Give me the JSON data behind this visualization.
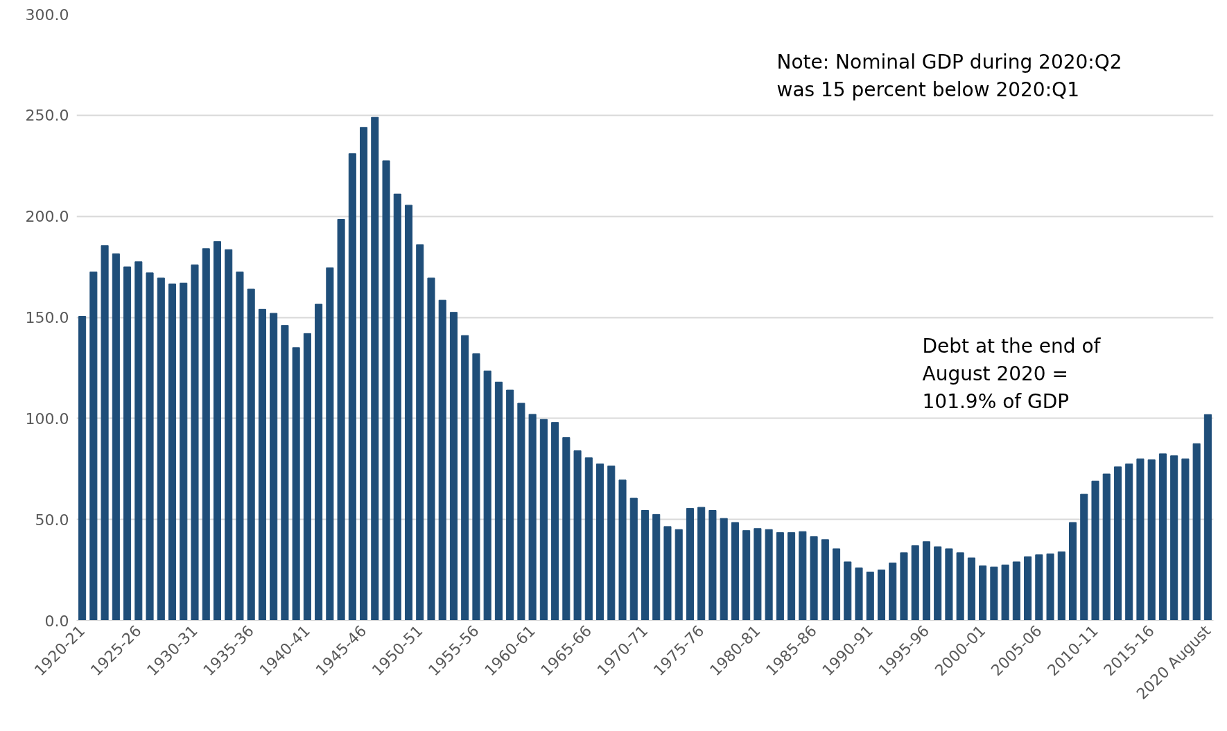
{
  "chart_data": {
    "type": "bar",
    "color": "#1f4e79",
    "categories": [
      "1920-21",
      null,
      null,
      null,
      null,
      "1925-26",
      null,
      null,
      null,
      null,
      "1930-31",
      null,
      null,
      null,
      null,
      "1935-36",
      null,
      null,
      null,
      null,
      "1940-41",
      null,
      null,
      null,
      null,
      "1945-46",
      null,
      null,
      null,
      null,
      "1950-51",
      null,
      null,
      null,
      null,
      "1955-56",
      null,
      null,
      null,
      null,
      "1960-61",
      null,
      null,
      null,
      null,
      "1965-66",
      null,
      null,
      null,
      null,
      "1970-71",
      null,
      null,
      null,
      null,
      "1975-76",
      null,
      null,
      null,
      null,
      "1980-81",
      null,
      null,
      null,
      null,
      "1985-86",
      null,
      null,
      null,
      null,
      "1990-91",
      null,
      null,
      null,
      null,
      "1995-96",
      null,
      null,
      null,
      null,
      "2000-01",
      null,
      null,
      null,
      null,
      "2005-06",
      null,
      null,
      null,
      null,
      "2010-11",
      null,
      null,
      null,
      null,
      "2015-16",
      null,
      null,
      null,
      null,
      "2020 August"
    ],
    "values": [
      150.5,
      172.5,
      185.5,
      181.5,
      175,
      177.5,
      172,
      169.5,
      166.5,
      167,
      176,
      184,
      187.5,
      183.5,
      172.5,
      164,
      154,
      152,
      146,
      135,
      142,
      156.5,
      174.5,
      198.5,
      231,
      244,
      249,
      227.5,
      211,
      205.5,
      186,
      169.5,
      158.5,
      152.5,
      141,
      132,
      123.5,
      118,
      114,
      107.5,
      102,
      99.5,
      98,
      90.5,
      84,
      80.5,
      77.5,
      76.5,
      69.5,
      60.5,
      54.5,
      52.5,
      46.5,
      45,
      55.5,
      56,
      54.5,
      50.5,
      48.5,
      44.5,
      45.5,
      45,
      43.5,
      43.5,
      44,
      41.5,
      40,
      35.5,
      29,
      26,
      24,
      25,
      28.5,
      33.5,
      37,
      39,
      36.5,
      35.5,
      33.5,
      31,
      27,
      26.5,
      27.5,
      29,
      31.5,
      32.5,
      33,
      34,
      48.5,
      62.5,
      69,
      72.5,
      76,
      77.5,
      80,
      79.5,
      82.5,
      81.5,
      80,
      87.5,
      101.9
    ],
    "ylim": [
      0,
      300
    ],
    "yticks": [
      {
        "value": 0,
        "label": "0.0"
      },
      {
        "value": 50,
        "label": "50.0"
      },
      {
        "value": 100,
        "label": "100.0"
      },
      {
        "value": 150,
        "label": "150.0"
      },
      {
        "value": 200,
        "label": "200.0"
      },
      {
        "value": 250,
        "label": "250.0"
      },
      {
        "value": 300,
        "label": "300.0"
      }
    ],
    "grid": "y",
    "annotations": [
      "Note: Nominal GDP during 2020:Q2\nwas 15 percent below 2020:Q1",
      "Debt at the end of\nAugust 2020 =\n101.9% of GDP"
    ]
  }
}
